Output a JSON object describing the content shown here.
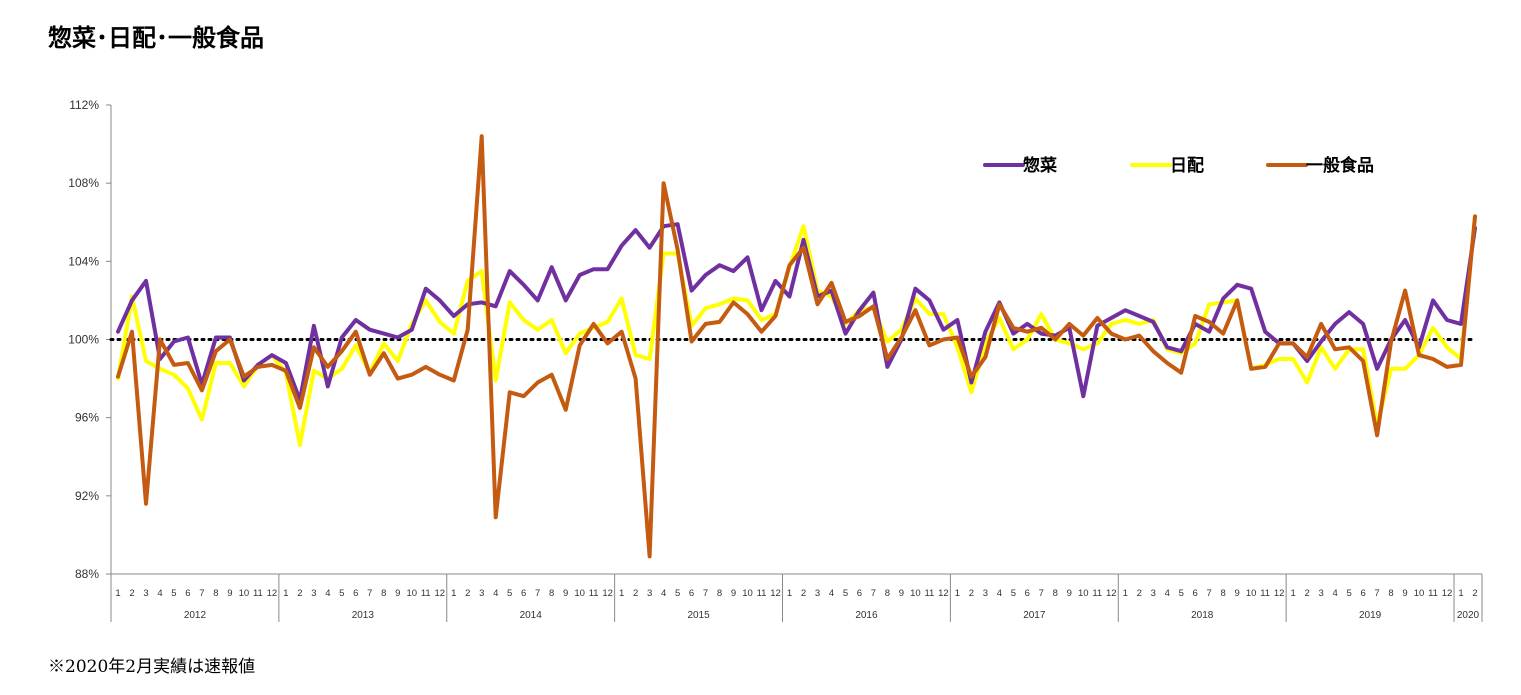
{
  "title": "惣菜･日配･一般食品",
  "note": "※2020年2月実績は速報値",
  "chart_data": {
    "type": "line",
    "title": "惣菜･日配･一般食品",
    "xlabel": "",
    "ylabel": "",
    "ylim": [
      88,
      112
    ],
    "yticks": [
      88,
      92,
      96,
      100,
      104,
      108,
      112
    ],
    "ytick_labels": [
      "88%",
      "92%",
      "96%",
      "100%",
      "104%",
      "108%",
      "112%"
    ],
    "reference_line": 100,
    "legend_position": "top-right",
    "years": [
      {
        "label": "2012",
        "months": 12
      },
      {
        "label": "2013",
        "months": 12
      },
      {
        "label": "2014",
        "months": 12
      },
      {
        "label": "2015",
        "months": 12
      },
      {
        "label": "2016",
        "months": 12
      },
      {
        "label": "2017",
        "months": 12
      },
      {
        "label": "2018",
        "months": 12
      },
      {
        "label": "2019",
        "months": 12
      },
      {
        "label": "2020",
        "months": 2
      }
    ],
    "series": [
      {
        "name": "惣菜",
        "color": "#7030A0",
        "values": [
          100.4,
          102.0,
          103.0,
          99.0,
          99.9,
          100.1,
          97.7,
          100.1,
          100.1,
          97.9,
          98.7,
          99.2,
          98.8,
          96.9,
          100.7,
          97.6,
          100.1,
          101.0,
          100.5,
          100.3,
          100.1,
          100.5,
          102.6,
          102.0,
          101.2,
          101.8,
          101.9,
          101.7,
          103.5,
          102.8,
          102.0,
          103.7,
          102.0,
          103.3,
          103.6,
          103.6,
          104.8,
          105.6,
          104.7,
          105.8,
          105.9,
          102.5,
          103.3,
          103.8,
          103.5,
          104.2,
          101.5,
          103.0,
          102.2,
          105.1,
          102.2,
          102.5,
          100.3,
          101.5,
          102.4,
          98.6,
          100.0,
          102.6,
          102.0,
          100.5,
          101.0,
          97.8,
          100.4,
          101.9,
          100.3,
          100.8,
          100.3,
          100.2,
          100.6,
          97.1,
          100.7,
          101.1,
          101.5,
          101.2,
          100.9,
          99.6,
          99.4,
          100.8,
          100.4,
          102.1,
          102.8,
          102.6,
          100.4,
          99.8,
          99.8,
          98.9,
          99.9,
          100.8,
          101.4,
          100.8,
          98.5,
          100.0,
          101.0,
          99.6,
          102.0,
          101.0,
          100.8,
          105.7
        ]
      },
      {
        "name": "日配",
        "color": "#FFFF00",
        "values": [
          98.0,
          102.2,
          98.9,
          98.5,
          98.2,
          97.5,
          95.9,
          98.8,
          98.8,
          97.6,
          98.7,
          99.2,
          98.3,
          94.6,
          98.4,
          98.0,
          98.5,
          99.7,
          98.3,
          99.8,
          98.9,
          100.8,
          102.0,
          100.9,
          100.3,
          103.0,
          103.5,
          97.9,
          101.9,
          101.0,
          100.5,
          101.0,
          99.3,
          100.3,
          100.6,
          100.9,
          102.1,
          99.2,
          99.0,
          104.4,
          104.4,
          100.7,
          101.6,
          101.8,
          102.1,
          102.0,
          101.0,
          101.3,
          103.7,
          105.8,
          102.5,
          102.2,
          100.8,
          101.5,
          101.6,
          99.9,
          100.5,
          102.1,
          101.3,
          101.3,
          99.6,
          97.3,
          99.8,
          101.1,
          99.5,
          100.0,
          101.3,
          100.0,
          99.8,
          99.5,
          99.8,
          100.8,
          101.0,
          100.8,
          101.0,
          99.5,
          99.3,
          99.8,
          101.8,
          101.9,
          102.0,
          98.5,
          98.7,
          99.0,
          99.0,
          97.8,
          99.6,
          98.5,
          99.5,
          99.5,
          95.6,
          98.5,
          98.5,
          99.2,
          100.6,
          99.6,
          99.0,
          106.3
        ]
      },
      {
        "name": "一般食品",
        "color": "#C55A11",
        "values": [
          98.1,
          100.4,
          91.6,
          100.0,
          98.7,
          98.8,
          97.4,
          99.4,
          100.0,
          98.1,
          98.6,
          98.7,
          98.4,
          96.5,
          99.6,
          98.6,
          99.4,
          100.4,
          98.2,
          99.3,
          98.0,
          98.2,
          98.6,
          98.2,
          97.9,
          100.5,
          110.4,
          90.9,
          97.3,
          97.1,
          97.8,
          98.2,
          96.4,
          99.7,
          100.8,
          99.8,
          100.4,
          98.0,
          88.9,
          108.0,
          104.6,
          99.9,
          100.8,
          100.9,
          101.9,
          101.3,
          100.4,
          101.2,
          103.8,
          104.7,
          101.8,
          102.9,
          100.9,
          101.2,
          101.7,
          99.0,
          100.1,
          101.5,
          99.7,
          100.0,
          100.1,
          98.1,
          99.1,
          101.8,
          100.6,
          100.4,
          100.6,
          100.0,
          100.8,
          100.2,
          101.1,
          100.3,
          100.0,
          100.2,
          99.4,
          98.8,
          98.3,
          101.2,
          100.9,
          100.3,
          102.0,
          98.5,
          98.6,
          99.8,
          99.8,
          99.1,
          100.8,
          99.5,
          99.6,
          98.9,
          95.1,
          99.9,
          102.5,
          99.2,
          99.0,
          98.6,
          98.7,
          106.3
        ]
      }
    ]
  }
}
